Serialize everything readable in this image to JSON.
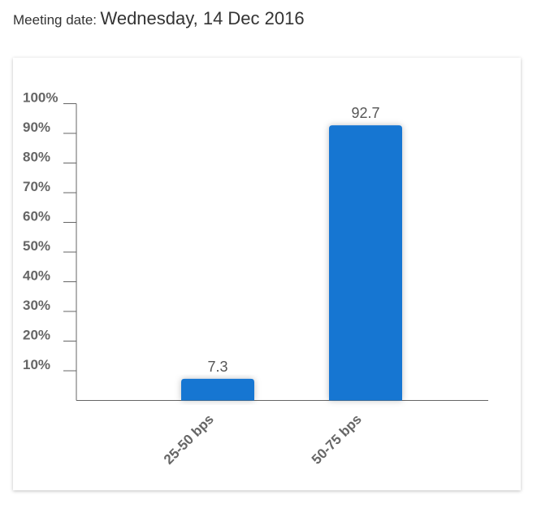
{
  "header": {
    "label": "Meeting date:",
    "value": "Wednesday, 14 Dec 2016"
  },
  "chart_data": {
    "type": "bar",
    "categories": [
      "25-50 bps",
      "50-75 bps"
    ],
    "values": [
      7.3,
      92.7
    ],
    "data_labels": [
      "7.3",
      "92.7"
    ],
    "ylim": [
      0,
      100
    ],
    "yticks": [
      "10%",
      "20%",
      "30%",
      "40%",
      "50%",
      "60%",
      "70%",
      "80%",
      "90%",
      "100%"
    ],
    "xlabel": "",
    "ylabel": "",
    "grid": false,
    "bar_color": "#1976d2"
  }
}
